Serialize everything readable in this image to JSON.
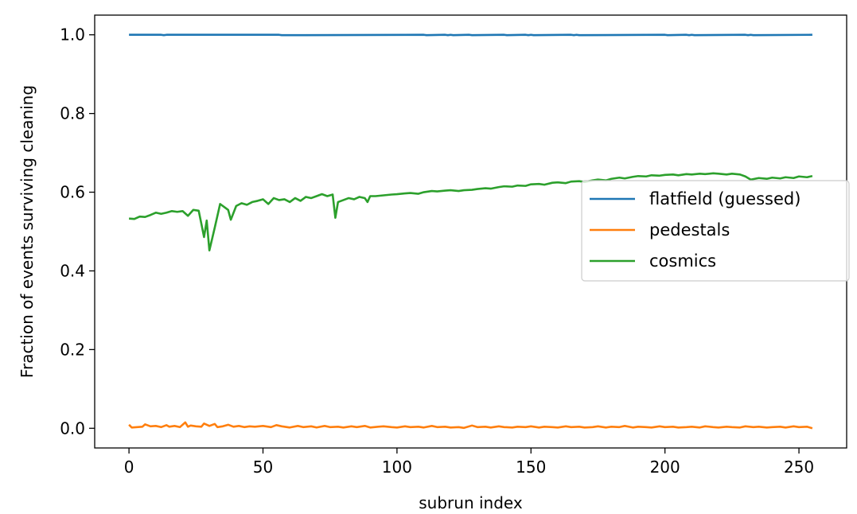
{
  "chart_data": {
    "type": "line",
    "title": "",
    "xlabel": "subrun index",
    "ylabel": "Fraction of events surviving cleaning",
    "xlim": [
      -12.8,
      267.8
    ],
    "ylim": [
      -0.05,
      1.05
    ],
    "xticks": [
      0,
      50,
      100,
      150,
      200,
      250
    ],
    "xtick_labels": [
      "0",
      "50",
      "100",
      "150",
      "200",
      "250"
    ],
    "yticks": [
      0.0,
      0.2,
      0.4,
      0.6,
      0.8,
      1.0
    ],
    "ytick_labels": [
      "0.0",
      "0.2",
      "0.4",
      "0.6",
      "0.8",
      "1.0"
    ],
    "grid": false,
    "legend_position": "center-right",
    "x_start": 0,
    "x_end": 255,
    "series": [
      {
        "name": "flatfield (guessed)",
        "color": "#1f77b4",
        "x": [
          0,
          12,
          13,
          14,
          56,
          57,
          110,
          111,
          118,
          119,
          120,
          121,
          127,
          128,
          140,
          141,
          148,
          149,
          150,
          151,
          165,
          166,
          167,
          168,
          200,
          201,
          208,
          209,
          210,
          211,
          230,
          231,
          232,
          233,
          255
        ],
        "y": [
          1.0,
          1.0,
          0.999,
          1.0,
          1.0,
          0.999,
          1.0,
          0.999,
          1.0,
          0.999,
          1.0,
          0.999,
          1.0,
          0.999,
          1.0,
          0.999,
          1.0,
          0.999,
          1.0,
          0.999,
          1.0,
          0.999,
          1.0,
          0.999,
          1.0,
          0.999,
          1.0,
          0.999,
          1.0,
          0.999,
          1.0,
          0.999,
          1.0,
          0.999,
          1.0
        ]
      },
      {
        "name": "pedestals",
        "color": "#ff7f0e",
        "x": [
          0,
          1,
          3,
          5,
          6,
          8,
          10,
          12,
          14,
          15,
          17,
          19,
          21,
          22,
          23,
          25,
          27,
          28,
          30,
          32,
          33,
          35,
          37,
          39,
          41,
          43,
          45,
          47,
          50,
          53,
          55,
          57,
          60,
          63,
          65,
          68,
          70,
          73,
          75,
          78,
          80,
          83,
          85,
          88,
          90,
          93,
          95,
          98,
          100,
          103,
          105,
          108,
          110,
          113,
          115,
          118,
          120,
          123,
          125,
          128,
          130,
          133,
          135,
          138,
          140,
          143,
          145,
          148,
          150,
          153,
          155,
          158,
          160,
          163,
          165,
          168,
          170,
          173,
          175,
          178,
          180,
          183,
          185,
          188,
          190,
          193,
          195,
          198,
          200,
          203,
          205,
          208,
          210,
          213,
          215,
          218,
          220,
          223,
          225,
          228,
          230,
          233,
          235,
          238,
          240,
          243,
          245,
          248,
          250,
          253,
          255
        ],
        "y": [
          0.009,
          0.002,
          0.003,
          0.004,
          0.01,
          0.005,
          0.006,
          0.003,
          0.008,
          0.004,
          0.006,
          0.003,
          0.015,
          0.004,
          0.007,
          0.005,
          0.004,
          0.012,
          0.006,
          0.011,
          0.003,
          0.005,
          0.009,
          0.004,
          0.006,
          0.003,
          0.005,
          0.004,
          0.006,
          0.003,
          0.008,
          0.005,
          0.002,
          0.006,
          0.003,
          0.005,
          0.002,
          0.006,
          0.003,
          0.004,
          0.002,
          0.005,
          0.003,
          0.006,
          0.002,
          0.004,
          0.005,
          0.003,
          0.002,
          0.005,
          0.003,
          0.004,
          0.002,
          0.006,
          0.003,
          0.004,
          0.002,
          0.003,
          0.001,
          0.007,
          0.003,
          0.004,
          0.002,
          0.005,
          0.003,
          0.002,
          0.004,
          0.003,
          0.005,
          0.002,
          0.004,
          0.003,
          0.002,
          0.005,
          0.003,
          0.004,
          0.002,
          0.003,
          0.005,
          0.002,
          0.004,
          0.003,
          0.006,
          0.002,
          0.004,
          0.003,
          0.002,
          0.005,
          0.003,
          0.004,
          0.002,
          0.003,
          0.004,
          0.002,
          0.005,
          0.003,
          0.002,
          0.004,
          0.003,
          0.002,
          0.005,
          0.003,
          0.004,
          0.002,
          0.003,
          0.004,
          0.002,
          0.005,
          0.003,
          0.004,
          0.0
        ]
      },
      {
        "name": "cosmics",
        "color": "#2ca02c",
        "x": [
          0,
          2,
          4,
          6,
          8,
          10,
          12,
          14,
          16,
          18,
          20,
          22,
          24,
          26,
          27,
          28,
          29,
          30,
          32,
          34,
          36,
          37,
          38,
          40,
          42,
          44,
          46,
          48,
          50,
          52,
          54,
          56,
          58,
          60,
          62,
          64,
          66,
          68,
          70,
          72,
          74,
          76,
          77,
          78,
          80,
          82,
          84,
          86,
          88,
          89,
          90,
          92,
          95,
          98,
          100,
          103,
          105,
          108,
          110,
          113,
          115,
          118,
          120,
          123,
          125,
          128,
          130,
          133,
          135,
          138,
          140,
          143,
          145,
          148,
          150,
          153,
          155,
          158,
          160,
          163,
          165,
          168,
          170,
          173,
          175,
          178,
          180,
          183,
          185,
          188,
          190,
          193,
          195,
          198,
          200,
          203,
          205,
          208,
          210,
          213,
          215,
          218,
          220,
          223,
          225,
          228,
          230,
          232,
          235,
          238,
          240,
          243,
          245,
          248,
          250,
          253,
          255
        ],
        "y": [
          0.533,
          0.532,
          0.538,
          0.537,
          0.542,
          0.548,
          0.545,
          0.548,
          0.552,
          0.55,
          0.552,
          0.54,
          0.555,
          0.553,
          0.52,
          0.486,
          0.528,
          0.452,
          0.51,
          0.57,
          0.56,
          0.555,
          0.53,
          0.565,
          0.572,
          0.568,
          0.575,
          0.578,
          0.582,
          0.57,
          0.585,
          0.58,
          0.582,
          0.575,
          0.585,
          0.578,
          0.588,
          0.585,
          0.59,
          0.595,
          0.59,
          0.594,
          0.535,
          0.575,
          0.58,
          0.585,
          0.582,
          0.588,
          0.585,
          0.575,
          0.59,
          0.59,
          0.592,
          0.594,
          0.595,
          0.597,
          0.598,
          0.596,
          0.6,
          0.603,
          0.602,
          0.604,
          0.605,
          0.603,
          0.605,
          0.606,
          0.608,
          0.61,
          0.609,
          0.613,
          0.615,
          0.614,
          0.617,
          0.616,
          0.62,
          0.621,
          0.619,
          0.624,
          0.625,
          0.623,
          0.627,
          0.628,
          0.626,
          0.63,
          0.632,
          0.63,
          0.634,
          0.637,
          0.635,
          0.639,
          0.641,
          0.64,
          0.643,
          0.642,
          0.644,
          0.645,
          0.643,
          0.646,
          0.645,
          0.647,
          0.646,
          0.648,
          0.647,
          0.645,
          0.647,
          0.645,
          0.64,
          0.632,
          0.636,
          0.634,
          0.637,
          0.635,
          0.638,
          0.636,
          0.64,
          0.638,
          0.641
        ]
      }
    ]
  }
}
